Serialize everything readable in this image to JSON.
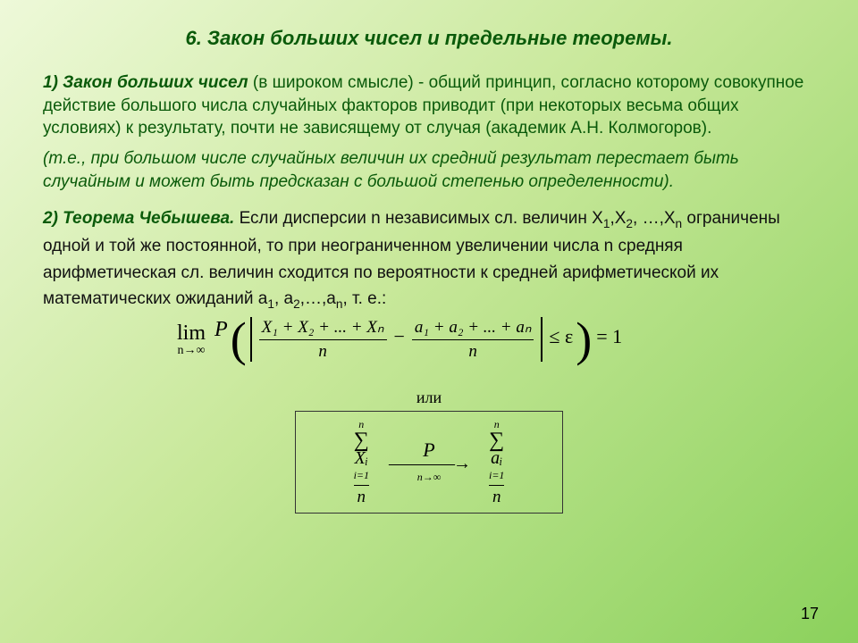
{
  "title": "6. Закон больших чисел и предельные теоремы.",
  "p1": {
    "lead": "1) Закон больших чисел",
    "body": " (в широком смысле) - общий принцип, согласно которому совокупное действие большого числа случайных факторов приводит (при некоторых весьма общих условиях) к результату, почти не зависящему от случая (академик А.Н. Колмогоров).",
    "note": "(т.е., при большом числе случайных величин их средний результат перестает быть случайным и может быть предсказан с большой степенью определенности)."
  },
  "p2": {
    "lead": "2) Теорема Чебышева.",
    "body_a": " Если дисперсии n независимых сл. величин X",
    "body_b": ",X",
    "body_c": ", …,X",
    "body_d": " ограничены одной и той же постоянной, то при неограниченном увеличении числа n средняя арифметическая сл. величин сходится по вероятности к средней арифметической их математических ожиданий a",
    "body_e": ", a",
    "body_f": ",…,a",
    "body_g": ", т. е.:"
  },
  "eq1": {
    "lim": "lim",
    "lim_sub": "n→∞",
    "P": "P",
    "num1": "X₁ + X₂ + ... + Xₙ",
    "den": "n",
    "num2": "a₁ + a₂ + ... + aₙ",
    "tail": "≤ ε",
    "rhs": " = 1"
  },
  "or_label": "или",
  "eq2": {
    "sum_top": "n",
    "sigma": "∑",
    "sum_bot": "i=1",
    "termX": "Xᵢ",
    "termA": "aᵢ",
    "den": "n",
    "scriptP": "P",
    "arrow_sub": "n→∞"
  },
  "page_number": "17",
  "colors": {
    "green_text": "#0a5a0a",
    "body_text": "#111111",
    "bg_light": "#eef9d9",
    "bg_mid": "#c8e89a",
    "bg_dark": "#8bd15c"
  }
}
